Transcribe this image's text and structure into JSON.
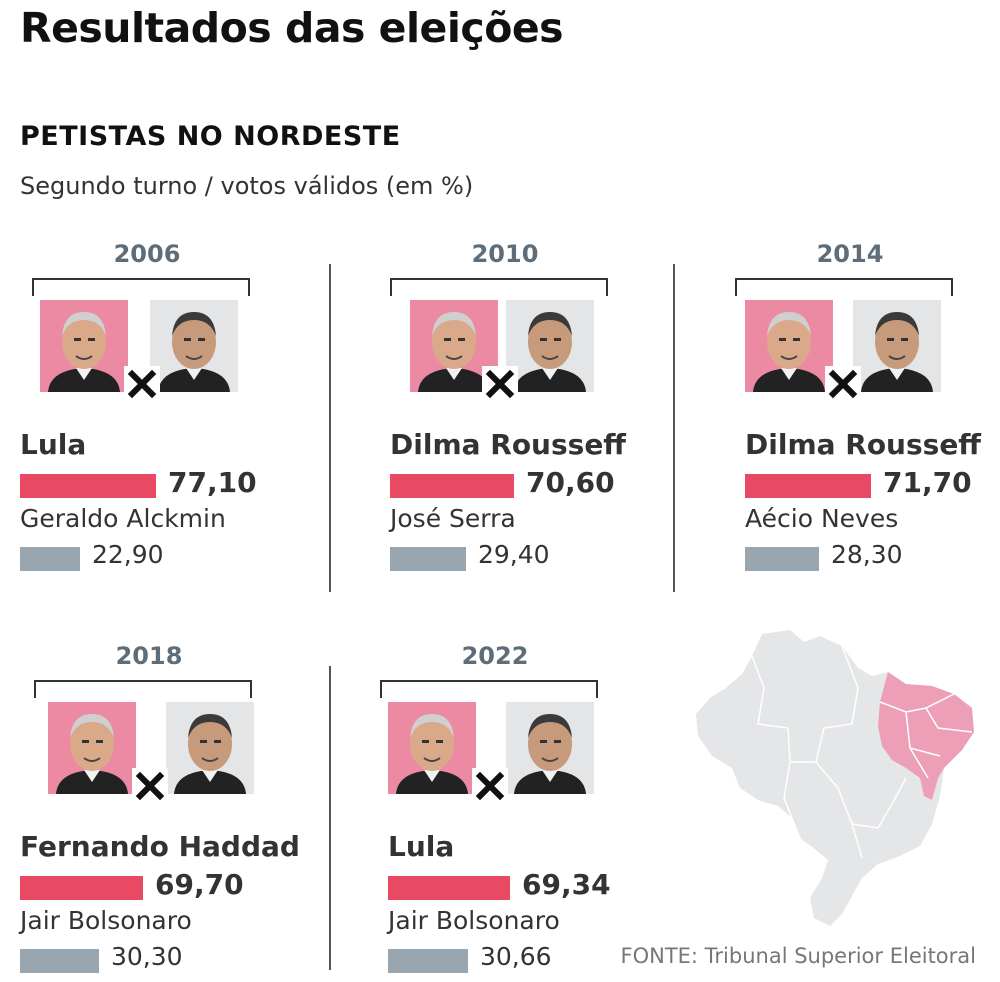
{
  "title": "Resultados das eleições",
  "section": "PETISTAS NO NORDESTE",
  "subtitle": "Segundo turno / votos válidos (em %)",
  "source": "FONTE: Tribunal Superior Eleitoral",
  "colors": {
    "winner": "#e84a63",
    "loser": "#9aa6af",
    "winner_photo_bg": "#ec8aa4",
    "loser_photo_bg": "#e3e5e7",
    "year": "#5d6d7a",
    "map_base": "#e4e6e8",
    "map_highlight": "#ec9fb6"
  },
  "chart_data": [
    {
      "type": "bar",
      "year": "2006",
      "series": [
        {
          "name": "Lula",
          "value": 77.1,
          "label": "77,10"
        },
        {
          "name": "Geraldo Alckmin",
          "value": 22.9,
          "label": "22,90"
        }
      ]
    },
    {
      "type": "bar",
      "year": "2010",
      "series": [
        {
          "name": "Dilma Rousseff",
          "value": 70.6,
          "label": "70,60"
        },
        {
          "name": "José Serra",
          "value": 29.4,
          "label": "29,40"
        }
      ]
    },
    {
      "type": "bar",
      "year": "2014",
      "series": [
        {
          "name": "Dilma Rousseff",
          "value": 71.7,
          "label": "71,70"
        },
        {
          "name": "Aécio Neves",
          "value": 28.3,
          "label": "28,30"
        }
      ]
    },
    {
      "type": "bar",
      "year": "2018",
      "series": [
        {
          "name": "Fernando Haddad",
          "value": 69.7,
          "label": "69,70"
        },
        {
          "name": "Jair Bolsonaro",
          "value": 30.3,
          "label": "30,30"
        }
      ]
    },
    {
      "type": "bar",
      "year": "2022",
      "series": [
        {
          "name": "Lula",
          "value": 69.34,
          "label": "69,34"
        },
        {
          "name": "Jair Bolsonaro",
          "value": 30.66,
          "label": "30,66"
        }
      ]
    }
  ]
}
